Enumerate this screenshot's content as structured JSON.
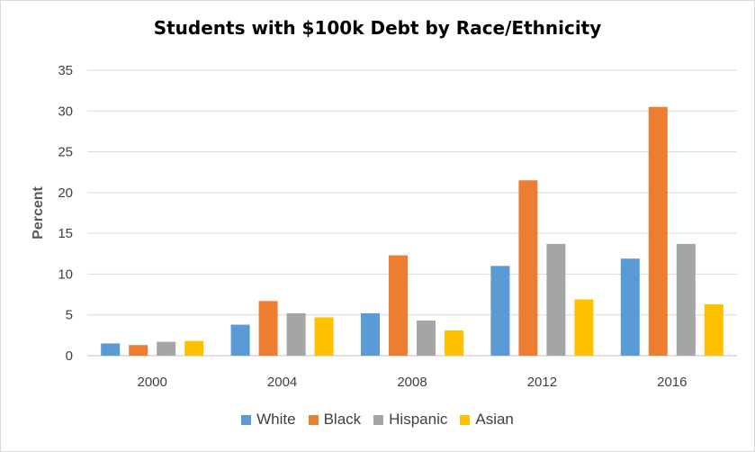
{
  "chart_data": {
    "type": "bar",
    "title": "Students with $100k Debt by Race/Ethnicity",
    "xlabel": "",
    "ylabel": "Percent",
    "ylim": [
      0,
      35
    ],
    "yticks": [
      "0",
      "5",
      "10",
      "15",
      "20",
      "25",
      "30",
      "35"
    ],
    "categories": [
      "2000",
      "2004",
      "2008",
      "2012",
      "2016"
    ],
    "grid": true,
    "legend_position": "bottom",
    "series": [
      {
        "name": "White",
        "color": "#5b9bd5",
        "values": [
          1.5,
          3.8,
          5.2,
          11.0,
          11.9
        ]
      },
      {
        "name": "Black",
        "color": "#ed7d31",
        "values": [
          1.3,
          6.7,
          12.3,
          21.5,
          30.5
        ]
      },
      {
        "name": "Hispanic",
        "color": "#a5a5a5",
        "values": [
          1.7,
          5.2,
          4.3,
          13.7,
          13.7
        ]
      },
      {
        "name": "Asian",
        "color": "#ffc000",
        "values": [
          1.8,
          4.7,
          3.1,
          6.9,
          6.3
        ]
      }
    ]
  }
}
